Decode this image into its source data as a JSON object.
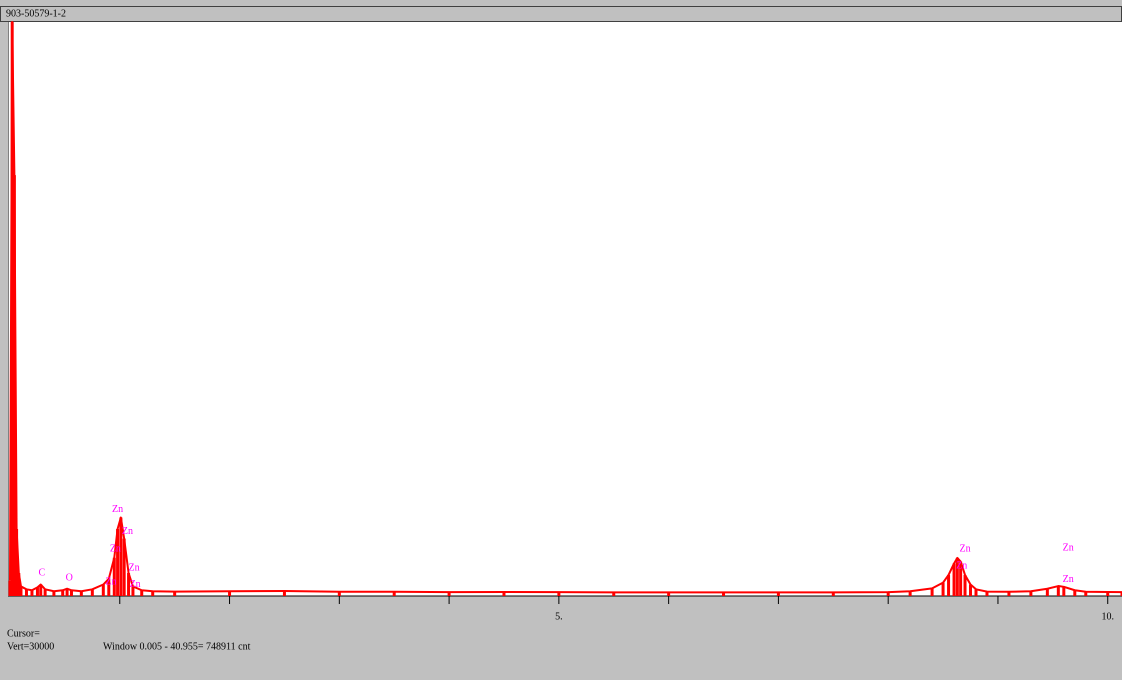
{
  "chart_data": {
    "type": "line",
    "title": "903-50579-1-2",
    "x": [
      0,
      0.02,
      0.04,
      0.06,
      0.08,
      0.1,
      0.15,
      0.2,
      0.25,
      0.28,
      0.32,
      0.4,
      0.48,
      0.52,
      0.56,
      0.65,
      0.75,
      0.85,
      0.9,
      0.95,
      0.98,
      1.01,
      1.04,
      1.08,
      1.12,
      1.2,
      1.3,
      1.5,
      2,
      2.5,
      3,
      3.5,
      4,
      4.5,
      5,
      5.5,
      6,
      6.5,
      7,
      7.5,
      8,
      8.2,
      8.4,
      8.5,
      8.55,
      8.6,
      8.63,
      8.66,
      8.7,
      8.75,
      8.8,
      8.9,
      9.1,
      9.3,
      9.45,
      9.55,
      9.6,
      9.7,
      9.8,
      10,
      10.13
    ],
    "values": [
      800,
      30000,
      22000,
      3500,
      1200,
      500,
      350,
      300,
      450,
      600,
      350,
      250,
      300,
      380,
      300,
      250,
      350,
      600,
      900,
      2000,
      3500,
      4100,
      3000,
      1200,
      500,
      300,
      250,
      230,
      250,
      260,
      220,
      220,
      200,
      210,
      200,
      190,
      190,
      190,
      190,
      190,
      200,
      250,
      400,
      700,
      1100,
      1700,
      1990,
      1800,
      1100,
      600,
      350,
      230,
      220,
      250,
      380,
      520,
      480,
      300,
      220,
      210,
      200
    ],
    "color": "#ff0000",
    "xlim": [
      0,
      10.13
    ],
    "ylim": [
      0,
      30000
    ],
    "xticks": [
      {
        "value": 1,
        "label": null
      },
      {
        "value": 2,
        "label": null
      },
      {
        "value": 3,
        "label": null
      },
      {
        "value": 4,
        "label": null
      },
      {
        "value": 5,
        "label": "5."
      },
      {
        "value": 6,
        "label": null
      },
      {
        "value": 7,
        "label": null
      },
      {
        "value": 8,
        "label": null
      },
      {
        "value": 9,
        "label": null
      },
      {
        "value": 10,
        "label": "10."
      }
    ],
    "annotation_color": "#ff00ff",
    "annotations": [
      {
        "text": "Zn",
        "x": 0.98,
        "y": 4500
      },
      {
        "text": "Zn",
        "x": 1.07,
        "y": 3350
      },
      {
        "text": "Zn",
        "x": 0.96,
        "y": 2450
      },
      {
        "text": "Zn",
        "x": 1.13,
        "y": 1460
      },
      {
        "text": "Zn",
        "x": 0.92,
        "y": 730
      },
      {
        "text": "Zn",
        "x": 1.14,
        "y": 580
      },
      {
        "text": "C",
        "x": 0.29,
        "y": 1200
      },
      {
        "text": "O",
        "x": 0.54,
        "y": 940
      },
      {
        "text": "Zn",
        "x": 8.7,
        "y": 2450
      },
      {
        "text": "Zn",
        "x": 8.67,
        "y": 1570
      },
      {
        "text": "Zn",
        "x": 9.64,
        "y": 2510
      },
      {
        "text": "Zn",
        "x": 9.64,
        "y": 840
      }
    ]
  },
  "status": {
    "cursor": "Cursor=",
    "vert": "Vert=30000",
    "window": "Window 0.005 - 40.955=  748911 cnt"
  }
}
